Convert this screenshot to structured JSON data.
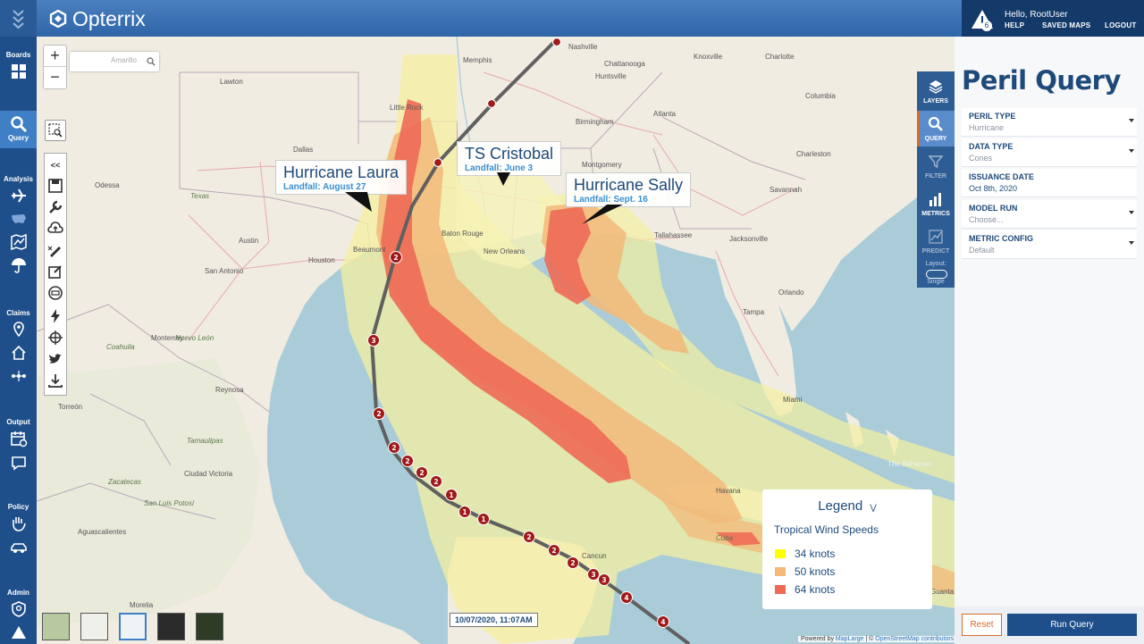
{
  "app": {
    "name": "Opterrix"
  },
  "header": {
    "greeting": "Hello, RootUser",
    "alert_count": "6",
    "links": [
      "HELP",
      "SAVED MAPS",
      "LOGOUT"
    ]
  },
  "sidebar": {
    "sections": [
      {
        "label": "Boards",
        "icon": "grid-icon"
      },
      {
        "label": "Query",
        "icon": "magnifier-icon",
        "active": true
      },
      {
        "label": "Analysis",
        "icon": "plane-icon"
      },
      {
        "label": "Claims",
        "icon": "pin-icon"
      },
      {
        "label": "Output",
        "icon": "calendar-icon"
      },
      {
        "label": "Policy",
        "icon": "hand-icon"
      },
      {
        "label": "Admin",
        "icon": "shield-icon"
      }
    ]
  },
  "map": {
    "search_placeholder": "Amarillo",
    "zoom_in": "+",
    "zoom_out": "−",
    "toolbar_collapse": "<<",
    "timestamp": "10/07/2020, 11:07AM",
    "attribution_prefix": "Powered by ",
    "attribution_maplarge": "MapLarge",
    "attribution_sep": " | © ",
    "attribution_osm": "OpenStreetMap contributors",
    "callouts": [
      {
        "title": "Hurricane Laura",
        "sub": "Landfall:  August 27"
      },
      {
        "title": "TS Cristobal",
        "sub": "Landfall:  June 3"
      },
      {
        "title": "Hurricane Sally",
        "sub": "Landfall:  Sept. 16"
      }
    ],
    "places": [
      "Memphis",
      "Nashville",
      "Knoxville",
      "Charlotte",
      "Lawton",
      "Little Rock",
      "Chattanooga",
      "Huntsville",
      "Atlanta",
      "Columbia",
      "Dallas",
      "Birmingham",
      "Montgomery",
      "Charleston",
      "Savannah",
      "Odessa",
      "Texas",
      "Austin",
      "Baton Rouge",
      "New Orleans",
      "Tallahassee",
      "Jacksonville",
      "San Antonio",
      "Houston",
      "Beaumont",
      "Orlando",
      "Tampa",
      "Monterrey",
      "Coahuila",
      "Nuevo León",
      "Reynosa",
      "Torreón",
      "Tamaulipas",
      "Miami",
      "Havana",
      "The Bahamas",
      "Cancun",
      "Zacatecas",
      "San Luis Potosí",
      "Aguascalientes",
      "Ciudad Victoria",
      "Morelia",
      "Cuba",
      "Guanta"
    ],
    "track_labels": [
      "2",
      "3",
      "2",
      "2",
      "2",
      "2",
      "2",
      "1",
      "1",
      "1",
      "2",
      "2",
      "2",
      "3",
      "3",
      "4",
      "4"
    ],
    "legend": {
      "title": "Legend",
      "subtitle": "Tropical Wind Speeds",
      "items": [
        {
          "label": "34 knots",
          "color": "#ffff00"
        },
        {
          "label": "50 knots",
          "color": "#f2b97a"
        },
        {
          "label": "64 knots",
          "color": "#ee6a55"
        }
      ]
    }
  },
  "rail": {
    "items": [
      {
        "label": "LAYERS",
        "icon": "layers-icon"
      },
      {
        "label": "QUERY",
        "icon": "magnifier-icon",
        "active": true
      },
      {
        "label": "FILTER",
        "icon": "filter-icon"
      },
      {
        "label": "METRICS",
        "icon": "bar-chart-icon"
      },
      {
        "label": "PREDICT",
        "icon": "predict-icon"
      }
    ],
    "layout_label": "Layout:",
    "layout_value": "Single"
  },
  "panel": {
    "title": "Peril Query",
    "fields": [
      {
        "label": "PERIL TYPE",
        "value": "Hurricane",
        "dropdown": true
      },
      {
        "label": "DATA TYPE",
        "value": "Cones",
        "dropdown": true
      },
      {
        "label": "ISSUANCE DATE",
        "value": "Oct 8th, 2020",
        "dropdown": false
      },
      {
        "label": "MODEL RUN",
        "value": "Choose...",
        "dropdown": true
      },
      {
        "label": "METRIC CONFIG",
        "value": "Default",
        "dropdown": true
      }
    ],
    "reset_label": "Reset",
    "run_label": "Run Query"
  },
  "colors": {
    "accent": "#1f4f8a",
    "reset": "#d96b2a",
    "cone_34": "#f4f0a0",
    "cone_50": "#f2b97a",
    "cone_64": "#ee6a55",
    "track": "#606060",
    "marker": "#a01a1a"
  }
}
